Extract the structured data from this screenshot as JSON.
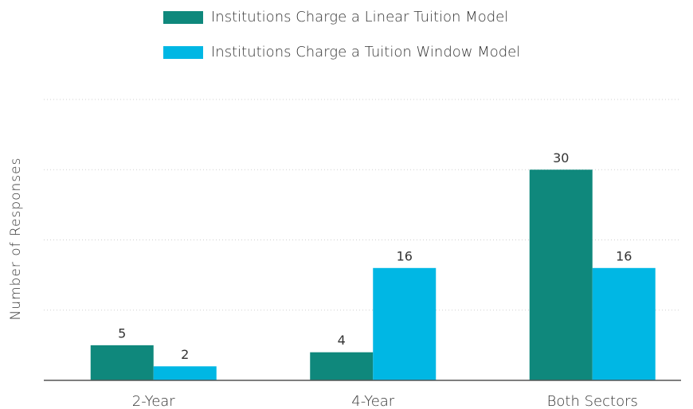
{
  "chart_data": {
    "type": "bar",
    "ylabel": "Number of Responses",
    "categories": [
      "2-Year",
      "4-Year",
      "Both Sectors"
    ],
    "series": [
      {
        "name": "Institutions Charge a Linear Tuition Model",
        "color": "#0f887c",
        "values": [
          5,
          4,
          30
        ]
      },
      {
        "name": "Institutions Charge a Tuition Window Model",
        "color": "#00b7e4",
        "values": [
          2,
          16,
          16
        ]
      }
    ],
    "ylim": [
      0,
      40
    ],
    "yticks": [
      10,
      20,
      30,
      40
    ],
    "ytick_labels": false,
    "grid": true,
    "legend": "top"
  }
}
